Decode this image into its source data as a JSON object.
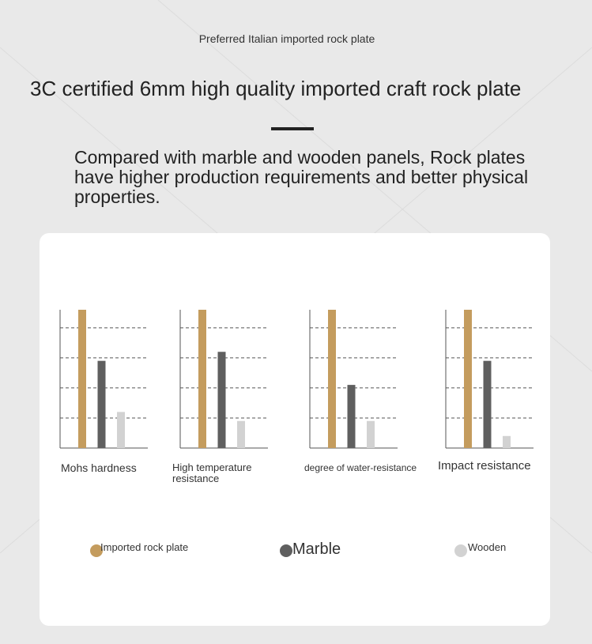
{
  "header": {
    "kicker": "Preferred Italian imported rock plate",
    "title": "3C certified 6mm high quality imported craft rock plate",
    "description": "Compared with marble and wooden panels, Rock plates have higher production requirements and better physical properties."
  },
  "chart_data": {
    "type": "bar",
    "categories": [
      "Mohs hardness",
      "High temperature resistance",
      "degree of water-resistance",
      "Impact resistance"
    ],
    "series": [
      {
        "name": "Imported rock plate",
        "color": "#c49c5e",
        "values": [
          4.6,
          4.6,
          4.6,
          4.6
        ]
      },
      {
        "name": "Marble",
        "color": "#5f5f5f",
        "values": [
          2.9,
          3.2,
          2.1,
          2.9
        ]
      },
      {
        "name": "Wooden",
        "color": "#d2d2d2",
        "values": [
          1.2,
          0.9,
          0.9,
          0.4
        ]
      }
    ],
    "ylim": [
      0,
      4.6
    ],
    "yticks": [
      1,
      2,
      3,
      4
    ],
    "grid": true
  }
}
